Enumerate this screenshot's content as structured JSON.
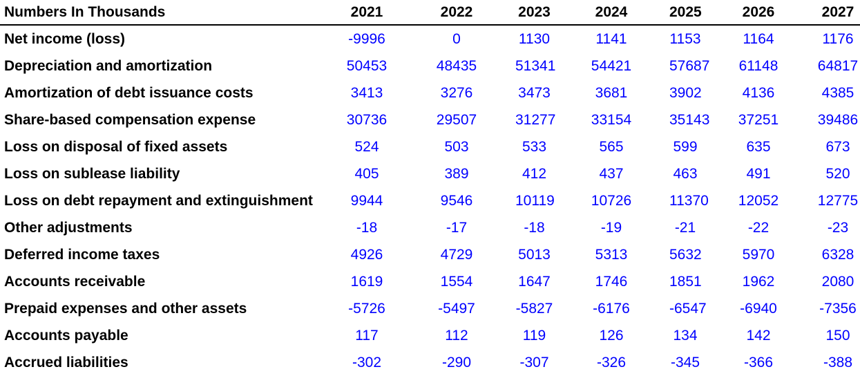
{
  "chart_data": {
    "type": "table",
    "header_label": "Numbers In Thousands",
    "colors": {
      "label": "#000000",
      "value": "#0000ff",
      "rule": "#000000"
    },
    "columns": [
      "2021",
      "2022",
      "2023",
      "2024",
      "2025",
      "2026",
      "2027"
    ],
    "rows": [
      {
        "label": "Net income (loss)",
        "values": [
          "-9996",
          "0",
          "1130",
          "1141",
          "1153",
          "1164",
          "1176"
        ]
      },
      {
        "label": "Depreciation and amortization",
        "values": [
          "50453",
          "48435",
          "51341",
          "54421",
          "57687",
          "61148",
          "64817"
        ]
      },
      {
        "label": "Amortization of debt issuance costs",
        "values": [
          "3413",
          "3276",
          "3473",
          "3681",
          "3902",
          "4136",
          "4385"
        ]
      },
      {
        "label": "Share-based compensation expense",
        "values": [
          "30736",
          "29507",
          "31277",
          "33154",
          "35143",
          "37251",
          "39486"
        ]
      },
      {
        "label": "Loss on disposal of fixed assets",
        "values": [
          "524",
          "503",
          "533",
          "565",
          "599",
          "635",
          "673"
        ]
      },
      {
        "label": "Loss on sublease liability",
        "values": [
          "405",
          "389",
          "412",
          "437",
          "463",
          "491",
          "520"
        ]
      },
      {
        "label": "Loss on debt repayment and extinguishment",
        "values": [
          "9944",
          "9546",
          "10119",
          "10726",
          "11370",
          "12052",
          "12775"
        ]
      },
      {
        "label": "Other adjustments",
        "values": [
          "-18",
          "-17",
          "-18",
          "-19",
          "-21",
          "-22",
          "-23"
        ]
      },
      {
        "label": "Deferred income taxes",
        "values": [
          "4926",
          "4729",
          "5013",
          "5313",
          "5632",
          "5970",
          "6328"
        ]
      },
      {
        "label": "Accounts receivable",
        "values": [
          "1619",
          "1554",
          "1647",
          "1746",
          "1851",
          "1962",
          "2080"
        ]
      },
      {
        "label": "Prepaid expenses and other assets",
        "values": [
          "-5726",
          "-5497",
          "-5827",
          "-6176",
          "-6547",
          "-6940",
          "-7356"
        ]
      },
      {
        "label": "Accounts payable",
        "values": [
          "117",
          "112",
          "119",
          "126",
          "134",
          "142",
          "150"
        ]
      },
      {
        "label": "Accrued liabilities",
        "values": [
          "-302",
          "-290",
          "-307",
          "-326",
          "-345",
          "-366",
          "-388"
        ]
      }
    ]
  }
}
